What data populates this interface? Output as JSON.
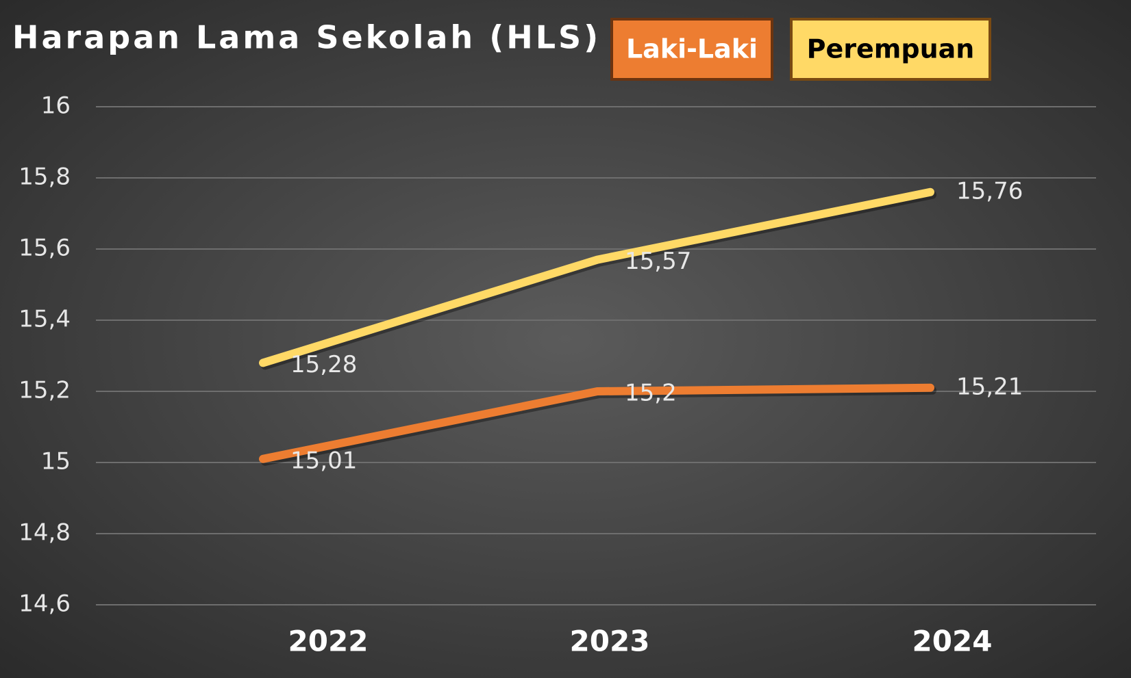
{
  "chart_data": {
    "type": "line",
    "title": "Harapan Lama Sekolah (HLS)",
    "categories": [
      "2022",
      "2023",
      "2024"
    ],
    "series": [
      {
        "name": "Laki-Laki",
        "color": "#ed7d31",
        "values": [
          15.01,
          15.2,
          15.21
        ],
        "value_labels": [
          "15,01",
          "15,2",
          "15,21"
        ]
      },
      {
        "name": "Perempuan",
        "color": "#ffd966",
        "values": [
          15.28,
          15.57,
          15.76
        ],
        "value_labels": [
          "15,28",
          "15,57",
          "15,76"
        ]
      }
    ],
    "ylim": [
      14.6,
      16
    ],
    "yticks": [
      {
        "value": 14.6,
        "label": "14,6"
      },
      {
        "value": 14.8,
        "label": "14,8"
      },
      15,
      {
        "value": 15.2,
        "label": "15,2"
      },
      {
        "value": 15.4,
        "label": "15,4"
      },
      {
        "value": 15.6,
        "label": "15,6"
      },
      {
        "value": 15.8,
        "label": "15,8"
      },
      16
    ],
    "grid": true,
    "legend": "top"
  }
}
